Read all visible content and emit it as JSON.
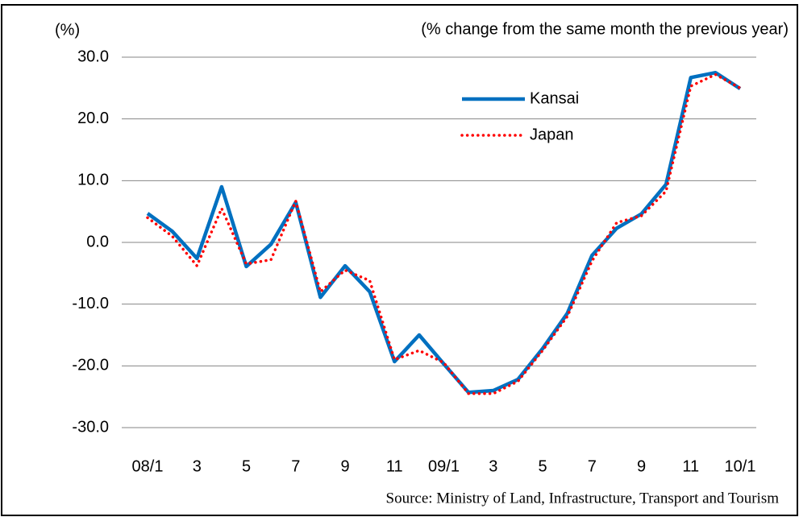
{
  "chart_data": {
    "type": "line",
    "unit_label": "(%)",
    "subtitle": "(% change from the same month the previous year)",
    "source": "Source: Ministry of Land, Infrastructure, Transport and Tourism",
    "categories": [
      "08/1",
      null,
      "3",
      null,
      "5",
      null,
      "7",
      null,
      "9",
      null,
      "11",
      null,
      "09/1",
      null,
      "3",
      null,
      "5",
      null,
      "7",
      null,
      "9",
      null,
      "11",
      null,
      "10/1"
    ],
    "series": [
      {
        "name": "Kansai",
        "color": "#0070c0",
        "style": "solid",
        "values": [
          4.7,
          1.8,
          -2.6,
          9.0,
          -3.9,
          -0.3,
          6.5,
          -8.9,
          -3.8,
          -8.0,
          -19.3,
          -15.0,
          -19.7,
          -24.3,
          -24.0,
          -22.2,
          -17.2,
          -11.5,
          -2.1,
          2.3,
          4.6,
          9.4,
          26.7,
          27.5,
          24.9
        ]
      },
      {
        "name": "Japan",
        "color": "#ff0000",
        "style": "dotted",
        "values": [
          4.0,
          1.0,
          -3.8,
          5.5,
          -3.5,
          -2.8,
          6.7,
          -8.0,
          -4.5,
          -6.2,
          -19.0,
          -17.5,
          -19.5,
          -24.5,
          -24.5,
          -22.5,
          -17.5,
          -12.0,
          -3.0,
          3.2,
          4.3,
          8.3,
          25.3,
          27.2,
          25.0
        ]
      }
    ],
    "ylim": [
      -30,
      30
    ],
    "yticks": [
      {
        "value": -30,
        "label": "-30.0"
      },
      {
        "value": -20,
        "label": "-20.0"
      },
      {
        "value": -10,
        "label": "-10.0"
      },
      {
        "value": 0,
        "label": "0.0"
      },
      {
        "value": 10,
        "label": "10.0"
      },
      {
        "value": 20,
        "label": "20.0"
      },
      {
        "value": 30,
        "label": "30.0"
      }
    ],
    "grid": true
  }
}
